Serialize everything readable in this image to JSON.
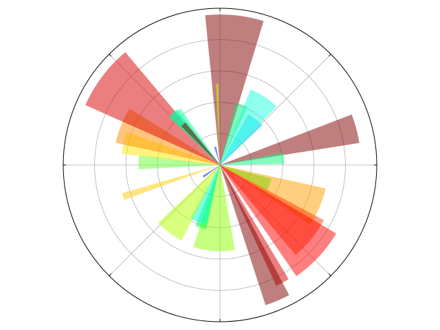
{
  "chart_data": {
    "type": "polar-bar",
    "title": "",
    "radial_range": [
      0,
      10
    ],
    "radial_ticks": [
      2,
      4,
      6,
      8
    ],
    "angular_ticks_deg": [
      0,
      45,
      90,
      135,
      180,
      225,
      270,
      315
    ],
    "tick_labels_visible": false,
    "grid": true,
    "bar_alpha": 0.5,
    "bars": [
      {
        "theta_deg": 5.6,
        "width_deg": 22.5,
        "r": 9.6,
        "color": "#800000"
      },
      {
        "theta_deg": 20.0,
        "width_deg": 11.0,
        "r": 4.1,
        "color": "#00ee7a"
      },
      {
        "theta_deg": 38.0,
        "width_deg": 18.0,
        "r": 3.7,
        "color": "#00d4ff"
      },
      {
        "theta_deg": 33.0,
        "width_deg": 22.0,
        "r": 5.2,
        "color": "#1dffd9"
      },
      {
        "theta_deg": 75.0,
        "width_deg": 12.0,
        "r": 9.0,
        "color": "#800000"
      },
      {
        "theta_deg": 84.0,
        "width_deg": 10.0,
        "r": 4.1,
        "color": "#00ff80"
      },
      {
        "theta_deg": 112.0,
        "width_deg": 14.0,
        "r": 3.4,
        "color": "#00ff00"
      },
      {
        "theta_deg": 113.0,
        "width_deg": 21.0,
        "r": 6.9,
        "color": "#ffa000"
      },
      {
        "theta_deg": 129.0,
        "width_deg": 22.0,
        "r": 7.5,
        "color": "#ff3a00"
      },
      {
        "theta_deg": 133.0,
        "width_deg": 25.0,
        "r": 8.6,
        "color": "#ff0000"
      },
      {
        "theta_deg": 152.0,
        "width_deg": 6.0,
        "r": 8.5,
        "color": "#d40000"
      },
      {
        "theta_deg": 157.0,
        "width_deg": 10.0,
        "r": 9.4,
        "color": "#800000"
      },
      {
        "theta_deg": 184.0,
        "width_deg": 28.0,
        "r": 5.5,
        "color": "#8cff00"
      },
      {
        "theta_deg": 197.0,
        "width_deg": 10.0,
        "r": 4.2,
        "color": "#00ff50"
      },
      {
        "theta_deg": 201.0,
        "width_deg": 16.0,
        "r": 3.9,
        "color": "#00ffd0"
      },
      {
        "theta_deg": 217.0,
        "width_deg": 20.0,
        "r": 5.4,
        "color": "#b4ff00"
      },
      {
        "theta_deg": 235.0,
        "width_deg": 6.0,
        "r": 1.3,
        "color": "#0000cd"
      },
      {
        "theta_deg": 252.0,
        "width_deg": 4.0,
        "r": 6.5,
        "color": "#ffcc00"
      },
      {
        "theta_deg": 272.0,
        "width_deg": 10.0,
        "r": 5.2,
        "color": "#67ff34"
      },
      {
        "theta_deg": 283.0,
        "width_deg": 13.0,
        "r": 6.3,
        "color": "#ffe600"
      },
      {
        "theta_deg": 292.0,
        "width_deg": 20.0,
        "r": 6.8,
        "color": "#ff8c00"
      },
      {
        "theta_deg": 307.0,
        "width_deg": 26.0,
        "r": 9.4,
        "color": "#d80000"
      },
      {
        "theta_deg": 318.0,
        "width_deg": 8.0,
        "r": 4.5,
        "color": "#00ffb8"
      },
      {
        "theta_deg": 319.0,
        "width_deg": 12.0,
        "r": 4.4,
        "color": "#00ff9c"
      },
      {
        "theta_deg": 318.0,
        "width_deg": 6.0,
        "r": 3.5,
        "color": "#800000"
      },
      {
        "theta_deg": 345.0,
        "width_deg": 6.0,
        "r": 1.2,
        "color": "#0000ff"
      },
      {
        "theta_deg": 358.0,
        "width_deg": 2.0,
        "r": 5.2,
        "color": "#c8ff00"
      }
    ]
  }
}
